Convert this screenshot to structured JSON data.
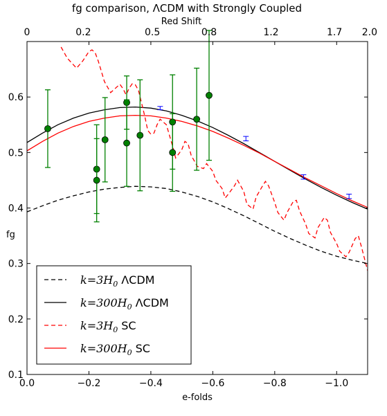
{
  "chart_data": {
    "type": "line",
    "title": "fg comparison, ΛCDM with Strongly Coupled",
    "xlabel": "e-folds",
    "ylabel": "fg",
    "top_xlabel": "Red Shift",
    "xlim": [
      0.0,
      -1.1
    ],
    "ylim": [
      0.1,
      0.7
    ],
    "x_ticks": [
      0.0,
      -0.2,
      -0.4,
      -0.6,
      -0.8,
      -1.0
    ],
    "x_tick_labels": [
      "0.0",
      "−0.2",
      "−0.4",
      "−0.6",
      "−0.8",
      "−1.0"
    ],
    "y_ticks": [
      0.1,
      0.2,
      0.3,
      0.4,
      0.5,
      0.6
    ],
    "y_tick_labels": [
      "0.1",
      "0.2",
      "0.3",
      "0.4",
      "0.5",
      "0.6"
    ],
    "top_ticks": [
      {
        "x": 0.0,
        "label": "0"
      },
      {
        "x": -0.182,
        "label": "0.2"
      },
      {
        "x": -0.405,
        "label": "0.5"
      },
      {
        "x": -0.588,
        "label": "0.8"
      },
      {
        "x": -0.788,
        "label": "1.2"
      },
      {
        "x": -0.993,
        "label": "1.7"
      },
      {
        "x": -1.1,
        "label": "2.0"
      }
    ],
    "grid": false,
    "legend_position": "bottom-left",
    "legend": [
      {
        "math": "k=3H",
        "sub": "0",
        "text": "ΛCDM",
        "color": "#000000",
        "dash": true
      },
      {
        "math": "k=300H",
        "sub": "0",
        "text": "ΛCDM",
        "color": "#000000",
        "dash": false
      },
      {
        "math": "k=3H",
        "sub": "0",
        "text": "SC",
        "color": "#ff0000",
        "dash": true
      },
      {
        "math": "k=300H",
        "sub": "0",
        "text": "SC",
        "color": "#ff0000",
        "dash": false
      }
    ],
    "series": [
      {
        "color": "#000000",
        "dash": true,
        "x": [
          0.0,
          -0.05,
          -0.1,
          -0.15,
          -0.2,
          -0.25,
          -0.3,
          -0.35,
          -0.4,
          -0.45,
          -0.5,
          -0.55,
          -0.6,
          -0.65,
          -0.7,
          -0.75,
          -0.8,
          -0.85,
          -0.9,
          -0.95,
          -1.0,
          -1.05,
          -1.1
        ],
        "y": [
          0.393,
          0.404,
          0.414,
          0.422,
          0.429,
          0.434,
          0.437,
          0.439,
          0.438,
          0.435,
          0.429,
          0.421,
          0.411,
          0.399,
          0.386,
          0.372,
          0.358,
          0.345,
          0.333,
          0.322,
          0.313,
          0.306,
          0.3
        ]
      },
      {
        "color": "#000000",
        "dash": false,
        "x": [
          0.0,
          -0.05,
          -0.1,
          -0.15,
          -0.2,
          -0.25,
          -0.3,
          -0.35,
          -0.4,
          -0.45,
          -0.5,
          -0.55,
          -0.6,
          -0.65,
          -0.7,
          -0.75,
          -0.8,
          -0.85,
          -0.9,
          -0.95,
          -1.0,
          -1.05,
          -1.1
        ],
        "y": [
          0.518,
          0.535,
          0.55,
          0.562,
          0.571,
          0.577,
          0.581,
          0.582,
          0.58,
          0.575,
          0.567,
          0.557,
          0.545,
          0.531,
          0.516,
          0.5,
          0.484,
          0.468,
          0.452,
          0.437,
          0.423,
          0.41,
          0.398
        ]
      },
      {
        "color": "#ff0000",
        "dash": true,
        "x": [
          -0.11,
          -0.13,
          -0.16,
          -0.18,
          -0.2,
          -0.21,
          -0.22,
          -0.23,
          -0.25,
          -0.27,
          -0.29,
          -0.3,
          -0.31,
          -0.32,
          -0.33,
          -0.34,
          -0.35,
          -0.36,
          -0.38,
          -0.39,
          -0.4,
          -0.41,
          -0.42,
          -0.43,
          -0.45,
          -0.47,
          -0.48,
          -0.5,
          -0.51,
          -0.52,
          -0.53,
          -0.55,
          -0.57,
          -0.58,
          -0.6,
          -0.61,
          -0.63,
          -0.64,
          -0.65,
          -0.67,
          -0.68,
          -0.7,
          -0.71,
          -0.73,
          -0.74,
          -0.76,
          -0.77,
          -0.78,
          -0.8,
          -0.81,
          -0.83,
          -0.84,
          -0.86,
          -0.87,
          -0.88,
          -0.9,
          -0.91,
          -0.93,
          -0.94,
          -0.96,
          -0.97,
          -0.98,
          -1.0,
          -1.01,
          -1.03,
          -1.04,
          -1.06,
          -1.07,
          -1.08,
          -1.1
        ],
        "y": [
          0.69,
          0.67,
          0.652,
          0.665,
          0.682,
          0.685,
          0.68,
          0.665,
          0.628,
          0.608,
          0.618,
          0.623,
          0.615,
          0.604,
          0.616,
          0.624,
          0.622,
          0.612,
          0.566,
          0.54,
          0.533,
          0.535,
          0.55,
          0.56,
          0.55,
          0.512,
          0.49,
          0.505,
          0.52,
          0.516,
          0.495,
          0.475,
          0.471,
          0.48,
          0.466,
          0.45,
          0.435,
          0.418,
          0.425,
          0.44,
          0.45,
          0.43,
          0.407,
          0.398,
          0.42,
          0.439,
          0.448,
          0.44,
          0.41,
          0.392,
          0.378,
          0.392,
          0.412,
          0.414,
          0.395,
          0.371,
          0.354,
          0.346,
          0.365,
          0.383,
          0.378,
          0.356,
          0.336,
          0.322,
          0.312,
          0.32,
          0.345,
          0.35,
          0.33,
          0.287
        ]
      },
      {
        "color": "#ff0000",
        "dash": false,
        "x": [
          0.0,
          -0.05,
          -0.1,
          -0.15,
          -0.2,
          -0.25,
          -0.3,
          -0.35,
          -0.4,
          -0.45,
          -0.5,
          -0.55,
          -0.6,
          -0.65,
          -0.7,
          -0.75,
          -0.8,
          -0.85,
          -0.9,
          -0.95,
          -1.0,
          -1.05,
          -1.1
        ],
        "y": [
          0.503,
          0.52,
          0.535,
          0.547,
          0.556,
          0.562,
          0.566,
          0.567,
          0.566,
          0.562,
          0.556,
          0.548,
          0.538,
          0.526,
          0.513,
          0.499,
          0.484,
          0.469,
          0.454,
          0.44,
          0.426,
          0.413,
          0.401
        ]
      }
    ],
    "observations": {
      "color": "#008000",
      "points": [
        {
          "x": -0.067,
          "y": 0.543,
          "err": 0.07
        },
        {
          "x": -0.225,
          "y": 0.47,
          "err": 0.08
        },
        {
          "x": -0.225,
          "y": 0.45,
          "err": 0.075
        },
        {
          "x": -0.252,
          "y": 0.523,
          "err": 0.076
        },
        {
          "x": -0.322,
          "y": 0.59,
          "err": 0.048
        },
        {
          "x": -0.322,
          "y": 0.517,
          "err": 0.078
        },
        {
          "x": -0.365,
          "y": 0.531,
          "err": 0.1
        },
        {
          "x": -0.47,
          "y": 0.555,
          "err": 0.085
        },
        {
          "x": -0.47,
          "y": 0.5,
          "err": 0.07
        },
        {
          "x": -0.548,
          "y": 0.56,
          "err": 0.092
        },
        {
          "x": -0.588,
          "y": 0.603,
          "err": 0.117
        }
      ]
    },
    "forecasts": {
      "color": "#0000ff",
      "points": [
        {
          "x": -0.43,
          "y": 0.58,
          "err": 0.003
        },
        {
          "x": -0.707,
          "y": 0.525,
          "err": 0.004
        },
        {
          "x": -0.893,
          "y": 0.456,
          "err": 0.004
        },
        {
          "x": -1.04,
          "y": 0.421,
          "err": 0.004
        }
      ]
    }
  }
}
